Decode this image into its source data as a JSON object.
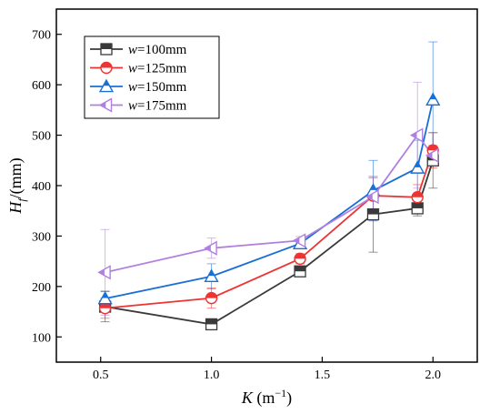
{
  "chart_data": {
    "type": "line",
    "x_label": {
      "italic": "K",
      "units": " (m",
      "sup": "−1",
      "close": ")"
    },
    "y_label": {
      "italic": "H",
      "sub": "f",
      "units": "/(mm)"
    },
    "xlim": [
      0.3,
      2.2
    ],
    "ylim": [
      50,
      750
    ],
    "x_ticks": [
      "0.5",
      "1.0",
      "1.5",
      "2.0"
    ],
    "x_tick_values": [
      0.5,
      1.0,
      1.5,
      2.0
    ],
    "y_ticks": [
      "100",
      "200",
      "300",
      "400",
      "500",
      "600",
      "700"
    ],
    "y_tick_values": [
      100,
      200,
      300,
      400,
      500,
      600,
      700
    ],
    "legend_position": "top-left",
    "series": [
      {
        "name": "w=100mm",
        "name_italic": "w",
        "name_rest": "=100mm",
        "color": "#3a3a3a",
        "marker": "square",
        "points": [
          {
            "x": 0.52,
            "y": 160,
            "err": 30
          },
          {
            "x": 1.0,
            "y": 125,
            "err": 5
          },
          {
            "x": 1.4,
            "y": 230,
            "err": 5
          },
          {
            "x": 1.73,
            "y": 343,
            "err": 75
          },
          {
            "x": 1.93,
            "y": 355,
            "err": 15
          },
          {
            "x": 2.0,
            "y": 450,
            "err": 55
          }
        ]
      },
      {
        "name": "w=125mm",
        "name_italic": "w",
        "name_rest": "=125mm",
        "color": "#ee3333",
        "marker": "circle",
        "points": [
          {
            "x": 0.52,
            "y": 157,
            "err": 20
          },
          {
            "x": 1.0,
            "y": 177,
            "err": 20
          },
          {
            "x": 1.4,
            "y": 255,
            "err": 10
          },
          {
            "x": 1.73,
            "y": 380,
            "err": 35
          },
          {
            "x": 1.93,
            "y": 377,
            "err": 25
          },
          {
            "x": 2.0,
            "y": 470,
            "err": 35
          }
        ]
      },
      {
        "name": "w=150mm",
        "name_italic": "w",
        "name_rest": "=150mm",
        "color": "#1a6fd6",
        "marker": "triangle-up",
        "points": [
          {
            "x": 0.52,
            "y": 176,
            "err": 15
          },
          {
            "x": 1.0,
            "y": 220,
            "err": 25
          },
          {
            "x": 1.4,
            "y": 285,
            "err": 8
          },
          {
            "x": 1.73,
            "y": 390,
            "err": 60
          },
          {
            "x": 1.93,
            "y": 435,
            "err": 55
          },
          {
            "x": 2.0,
            "y": 570,
            "err": 115
          }
        ]
      },
      {
        "name": "w=175mm",
        "name_italic": "w",
        "name_rest": "=175mm",
        "color": "#b07fe0",
        "marker": "triangle-left",
        "points": [
          {
            "x": 0.52,
            "y": 228,
            "err": 85
          },
          {
            "x": 1.0,
            "y": 276,
            "err": 20
          },
          {
            "x": 1.4,
            "y": 291,
            "err": 8
          },
          {
            "x": 1.73,
            "y": 378,
            "err": 40
          },
          {
            "x": 1.93,
            "y": 500,
            "err": 105
          },
          {
            "x": 2.0,
            "y": 460,
            "err": 20
          }
        ]
      }
    ]
  }
}
